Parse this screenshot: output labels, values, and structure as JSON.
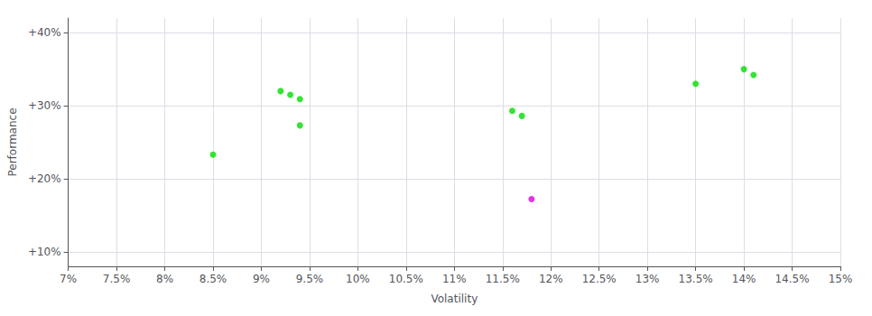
{
  "chart_data": {
    "type": "scatter",
    "xlabel": "Volatility",
    "ylabel": "Performance",
    "xlim": [
      0.07,
      0.15
    ],
    "ylim": [
      0.08,
      0.42
    ],
    "xticks": [
      {
        "value": 0.07,
        "label": "7%"
      },
      {
        "value": 0.075,
        "label": "7.5%"
      },
      {
        "value": 0.08,
        "label": "8%"
      },
      {
        "value": 0.085,
        "label": "8.5%"
      },
      {
        "value": 0.09,
        "label": "9%"
      },
      {
        "value": 0.095,
        "label": "9.5%"
      },
      {
        "value": 0.1,
        "label": "10%"
      },
      {
        "value": 0.105,
        "label": "10.5%"
      },
      {
        "value": 0.11,
        "label": "11%"
      },
      {
        "value": 0.115,
        "label": "11.5%"
      },
      {
        "value": 0.12,
        "label": "12%"
      },
      {
        "value": 0.125,
        "label": "12.5%"
      },
      {
        "value": 0.13,
        "label": "13%"
      },
      {
        "value": 0.135,
        "label": "13.5%"
      },
      {
        "value": 0.14,
        "label": "14%"
      },
      {
        "value": 0.145,
        "label": "14.5%"
      },
      {
        "value": 0.15,
        "label": "15%"
      }
    ],
    "yticks": [
      {
        "value": 0.1,
        "label": "+10%"
      },
      {
        "value": 0.2,
        "label": "+20%"
      },
      {
        "value": 0.3,
        "label": "+30%"
      },
      {
        "value": 0.4,
        "label": "+40%"
      }
    ],
    "grid": true,
    "series": [
      {
        "color": "#00dd00",
        "x": [
          0.092,
          0.093,
          0.094,
          0.094,
          0.085,
          0.116,
          0.117,
          0.135,
          0.14,
          0.141
        ],
        "values": [
          0.32,
          0.315,
          0.309,
          0.273,
          0.233,
          0.293,
          0.286,
          0.33,
          0.35,
          0.342
        ]
      },
      {
        "color": "#dd00dd",
        "x": [
          0.118
        ],
        "values": [
          0.172
        ]
      }
    ]
  }
}
